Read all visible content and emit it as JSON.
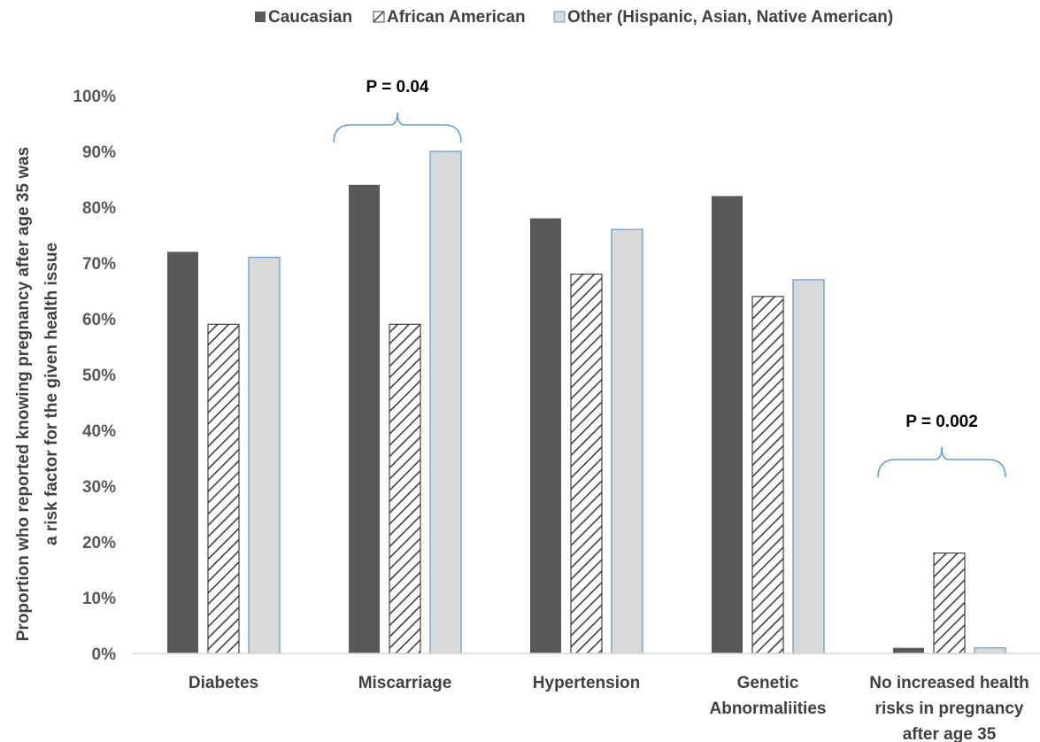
{
  "chart_data": {
    "type": "bar",
    "ylabel_lines": [
      "Proportion  who reported knowing pregnancy after age 35 was",
      "a risk factor for the given health issue"
    ],
    "xlabel": "",
    "ylim": [
      0,
      100
    ],
    "y_ticks": [
      "0%",
      "10%",
      "20%",
      "30%",
      "40%",
      "50%",
      "60%",
      "70%",
      "80%",
      "90%",
      "100%"
    ],
    "categories": [
      [
        "Diabetes"
      ],
      [
        "Miscarriage"
      ],
      [
        "Hypertension"
      ],
      [
        "Genetic",
        "Abnormaliities"
      ],
      [
        "No increased health",
        "risks in pregnancy",
        "after age 35"
      ]
    ],
    "series": [
      {
        "name": "Caucasian",
        "values": [
          72,
          84,
          78,
          82,
          1
        ],
        "style": "solid",
        "color": "#595959"
      },
      {
        "name": "African American",
        "values": [
          59,
          59,
          68,
          64,
          18
        ],
        "style": "hatched",
        "color": "#404040"
      },
      {
        "name": "Other (Hispanic, Asian, Native American)",
        "values": [
          71,
          90,
          76,
          67,
          1
        ],
        "style": "light",
        "color": "#d9d9d9",
        "edge": "#5b9bd5"
      }
    ],
    "legend_position": "top",
    "grid": false,
    "annotations": [
      {
        "text": "P = 0.04",
        "category_index": 1
      },
      {
        "text": "P = 0.002",
        "category_index": 4
      }
    ],
    "bracket_color": "#5b9bd5"
  }
}
